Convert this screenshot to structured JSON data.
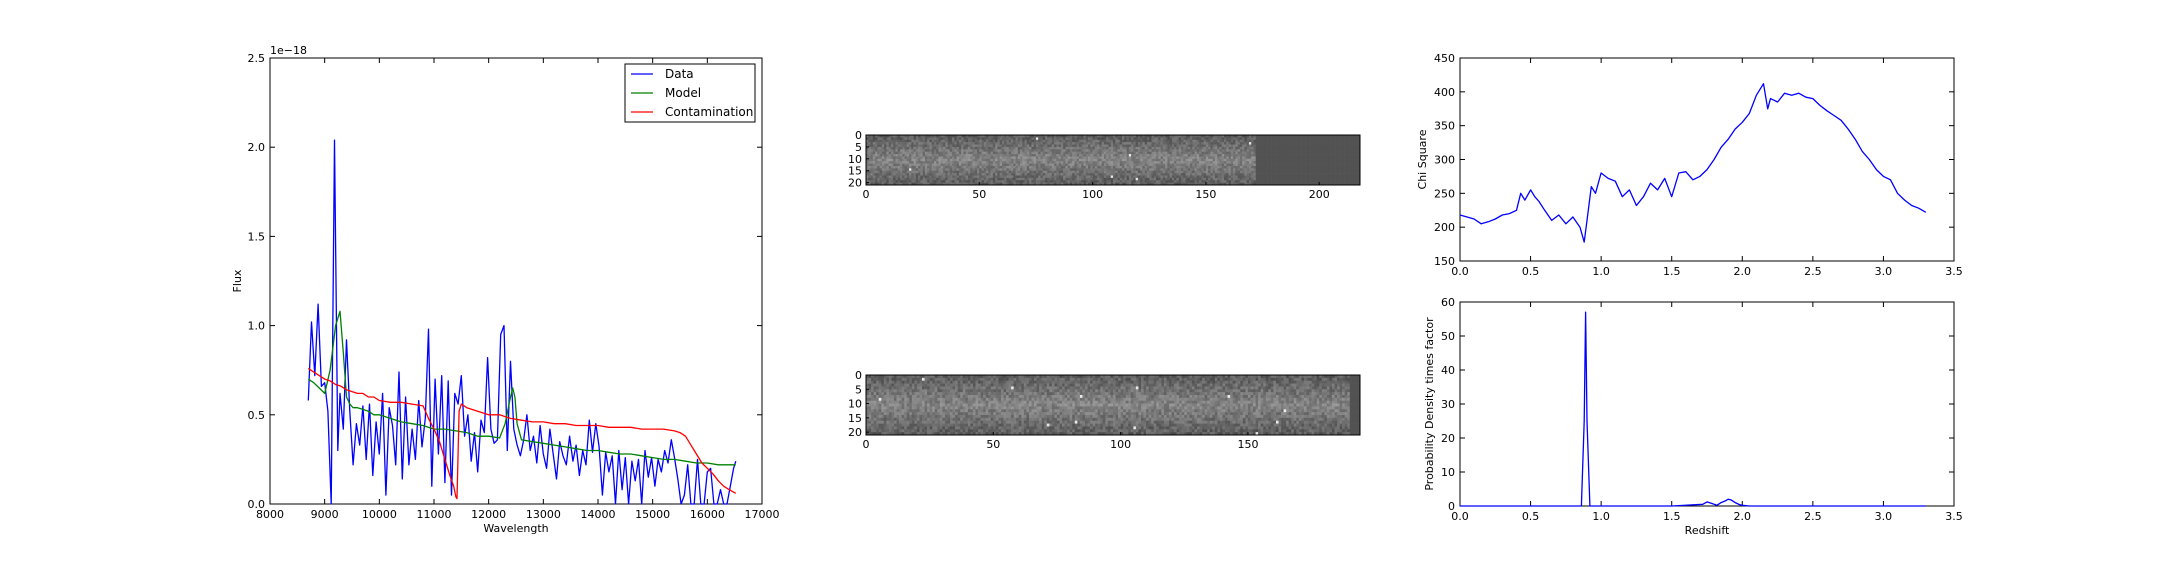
{
  "chart_data": [
    {
      "type": "line",
      "title": "",
      "xlabel": "Wavelength",
      "ylabel": "Flux",
      "yoffset_label": "1e−18",
      "xlim": [
        8000,
        17000
      ],
      "ylim": [
        0.0,
        2.5
      ],
      "xticks": [
        8000,
        9000,
        10000,
        11000,
        12000,
        13000,
        14000,
        15000,
        16000,
        17000
      ],
      "yticks": [
        0.0,
        0.5,
        1.0,
        1.5,
        2.0,
        2.5
      ],
      "ytick_labels": [
        "0.0",
        "0.5",
        "1.0",
        "1.5",
        "2.0",
        "2.5"
      ],
      "legend": {
        "position": "upper right"
      },
      "series": [
        {
          "name": "Data",
          "color": "#0000ff",
          "x": [
            8700,
            8760,
            8820,
            8880,
            8940,
            9000,
            9060,
            9120,
            9180,
            9240,
            9280,
            9340,
            9400,
            9460,
            9520,
            9580,
            9640,
            9700,
            9760,
            9820,
            9880,
            9940,
            10000,
            10060,
            10120,
            10180,
            10240,
            10300,
            10360,
            10420,
            10480,
            10540,
            10600,
            10660,
            10720,
            10780,
            10840,
            10900,
            10960,
            11020,
            11080,
            11140,
            11200,
            11260,
            11320,
            11380,
            11440,
            11500,
            11560,
            11620,
            11680,
            11740,
            11800,
            11860,
            11920,
            11980,
            12040,
            12100,
            12160,
            12220,
            12280,
            12340,
            12400,
            12460,
            12520,
            12580,
            12640,
            12700,
            12760,
            12820,
            12880,
            12940,
            13000,
            13060,
            13120,
            13180,
            13240,
            13300,
            13360,
            13420,
            13480,
            13540,
            13600,
            13660,
            13720,
            13780,
            13840,
            13900,
            13960,
            14020,
            14080,
            14140,
            14200,
            14260,
            14320,
            14380,
            14440,
            14500,
            14560,
            14620,
            14680,
            14740,
            14800,
            14860,
            14920,
            14980,
            15040,
            15100,
            15160,
            15220,
            15280,
            15340,
            15400,
            15460,
            15520,
            15580,
            15640,
            15700,
            15760,
            15820,
            15880,
            15940,
            16000,
            16060,
            16120,
            16180,
            16240,
            16300,
            16360,
            16420,
            16480,
            16520
          ],
          "y": [
            0.58,
            1.02,
            0.72,
            1.12,
            0.66,
            0.68,
            0.52,
            0.0,
            2.04,
            0.3,
            0.62,
            0.42,
            0.92,
            0.52,
            0.22,
            0.45,
            0.33,
            0.55,
            0.25,
            0.56,
            0.16,
            0.46,
            0.28,
            0.62,
            0.05,
            0.54,
            0.44,
            0.22,
            0.74,
            0.14,
            0.6,
            0.22,
            0.42,
            0.25,
            0.58,
            0.32,
            0.48,
            0.98,
            0.1,
            0.7,
            0.28,
            0.72,
            0.12,
            0.69,
            0.05,
            0.62,
            0.56,
            0.72,
            0.38,
            0.5,
            0.24,
            0.4,
            0.18,
            0.47,
            0.4,
            0.82,
            0.42,
            0.34,
            0.36,
            0.95,
            1.0,
            0.3,
            0.8,
            0.42,
            0.33,
            0.27,
            0.36,
            0.5,
            0.3,
            0.38,
            0.23,
            0.44,
            0.28,
            0.2,
            0.42,
            0.28,
            0.14,
            0.35,
            0.27,
            0.22,
            0.38,
            0.24,
            0.33,
            0.16,
            0.3,
            0.22,
            0.47,
            0.29,
            0.45,
            0.32,
            0.05,
            0.29,
            0.18,
            0.27,
            0.0,
            0.3,
            0.08,
            0.26,
            0.0,
            0.24,
            0.13,
            0.25,
            0.0,
            0.3,
            0.15,
            0.26,
            0.1,
            0.25,
            0.18,
            0.3,
            0.23,
            0.36,
            0.26,
            0.14,
            0.0,
            0.05,
            0.22,
            0.0,
            0.0,
            0.25,
            0.0,
            0.0,
            0.18,
            0.2,
            0.0,
            0.0,
            0.08,
            0.0,
            0.0,
            0.1,
            0.2,
            0.24
          ]
        },
        {
          "name": "Model",
          "color": "#008000",
          "x": [
            8700,
            8800,
            8900,
            9000,
            9100,
            9200,
            9280,
            9340,
            9400,
            9460,
            9520,
            9600,
            9700,
            9800,
            9900,
            10000,
            10200,
            10400,
            10600,
            10800,
            11000,
            11200,
            11400,
            11600,
            11800,
            12000,
            12200,
            12300,
            12400,
            12440,
            12480,
            12520,
            12600,
            12800,
            13000,
            13200,
            13400,
            13600,
            13800,
            14000,
            14200,
            14400,
            14600,
            14800,
            15000,
            15200,
            15400,
            15600,
            15800,
            16000,
            16200,
            16400,
            16520
          ],
          "y": [
            0.7,
            0.68,
            0.65,
            0.62,
            0.75,
            1.0,
            1.08,
            0.85,
            0.6,
            0.56,
            0.54,
            0.54,
            0.53,
            0.52,
            0.5,
            0.5,
            0.48,
            0.46,
            0.45,
            0.44,
            0.42,
            0.42,
            0.41,
            0.4,
            0.38,
            0.38,
            0.37,
            0.45,
            0.6,
            0.65,
            0.6,
            0.45,
            0.36,
            0.35,
            0.34,
            0.33,
            0.32,
            0.31,
            0.3,
            0.3,
            0.29,
            0.28,
            0.28,
            0.27,
            0.26,
            0.25,
            0.25,
            0.24,
            0.23,
            0.23,
            0.22,
            0.22,
            0.22
          ]
        },
        {
          "name": "Contamination",
          "color": "#ff0000",
          "x": [
            8700,
            8800,
            8900,
            9000,
            9100,
            9200,
            9300,
            9400,
            9500,
            9600,
            9700,
            9800,
            9900,
            10000,
            10200,
            10400,
            10600,
            10800,
            10900,
            11000,
            11100,
            11200,
            11300,
            11360,
            11400,
            11420,
            11460,
            11500,
            11600,
            11800,
            12000,
            12200,
            12400,
            12600,
            12800,
            13000,
            13200,
            13400,
            13600,
            13800,
            14000,
            14200,
            14400,
            14600,
            14800,
            15000,
            15200,
            15400,
            15500,
            15600,
            15700,
            15800,
            15900,
            16000,
            16100,
            16200,
            16300,
            16400,
            16520
          ],
          "y": [
            0.76,
            0.74,
            0.72,
            0.7,
            0.69,
            0.67,
            0.66,
            0.64,
            0.63,
            0.62,
            0.62,
            0.6,
            0.6,
            0.58,
            0.57,
            0.57,
            0.56,
            0.55,
            0.48,
            0.42,
            0.35,
            0.25,
            0.15,
            0.1,
            0.04,
            0.03,
            0.52,
            0.56,
            0.54,
            0.52,
            0.5,
            0.5,
            0.48,
            0.47,
            0.46,
            0.46,
            0.45,
            0.45,
            0.44,
            0.44,
            0.44,
            0.43,
            0.43,
            0.43,
            0.42,
            0.42,
            0.42,
            0.41,
            0.4,
            0.38,
            0.33,
            0.28,
            0.23,
            0.2,
            0.17,
            0.13,
            0.1,
            0.08,
            0.06
          ]
        }
      ]
    },
    {
      "type": "heatmap",
      "title": "",
      "xlim": [
        0,
        218
      ],
      "ylim": [
        21,
        0
      ],
      "xticks": [
        0,
        50,
        100,
        150,
        200
      ],
      "yticks": [
        0,
        5,
        10,
        15,
        20
      ],
      "colormap": "gray",
      "masked_from_x": 172
    },
    {
      "type": "heatmap",
      "title": "",
      "xlim": [
        0,
        194
      ],
      "ylim": [
        21,
        0
      ],
      "xticks": [
        0,
        50,
        100,
        150
      ],
      "yticks": [
        0,
        5,
        10,
        15,
        20
      ],
      "colormap": "gray",
      "masked_from_x": 190
    },
    {
      "type": "line",
      "title": "",
      "xlabel": "",
      "ylabel": "Chi Square",
      "xlim": [
        0.0,
        3.5
      ],
      "ylim": [
        150,
        450
      ],
      "xticks": [
        0.0,
        0.5,
        1.0,
        1.5,
        2.0,
        2.5,
        3.0,
        3.5
      ],
      "xtick_labels": [
        "0.0",
        "0.5",
        "1.0",
        "1.5",
        "2.0",
        "2.5",
        "3.0",
        "3.5"
      ],
      "yticks": [
        150,
        200,
        250,
        300,
        350,
        400,
        450
      ],
      "series": [
        {
          "color": "#0000ff",
          "x": [
            0.0,
            0.05,
            0.1,
            0.15,
            0.2,
            0.25,
            0.3,
            0.35,
            0.4,
            0.43,
            0.46,
            0.5,
            0.53,
            0.56,
            0.6,
            0.65,
            0.7,
            0.75,
            0.8,
            0.85,
            0.88,
            0.9,
            0.93,
            0.96,
            1.0,
            1.05,
            1.1,
            1.15,
            1.2,
            1.25,
            1.3,
            1.35,
            1.4,
            1.45,
            1.5,
            1.55,
            1.6,
            1.65,
            1.7,
            1.75,
            1.8,
            1.85,
            1.9,
            1.95,
            2.0,
            2.05,
            2.1,
            2.15,
            2.18,
            2.2,
            2.25,
            2.3,
            2.35,
            2.4,
            2.45,
            2.5,
            2.55,
            2.6,
            2.65,
            2.7,
            2.75,
            2.8,
            2.85,
            2.9,
            2.95,
            3.0,
            3.05,
            3.1,
            3.15,
            3.2,
            3.25,
            3.3
          ],
          "y": [
            218,
            215,
            212,
            205,
            208,
            212,
            218,
            220,
            225,
            250,
            240,
            255,
            245,
            238,
            225,
            210,
            218,
            205,
            215,
            200,
            178,
            210,
            260,
            250,
            280,
            272,
            268,
            245,
            255,
            232,
            245,
            265,
            255,
            272,
            245,
            280,
            282,
            270,
            275,
            285,
            300,
            318,
            330,
            345,
            355,
            368,
            395,
            412,
            375,
            390,
            385,
            398,
            395,
            398,
            392,
            390,
            380,
            372,
            365,
            358,
            345,
            330,
            312,
            300,
            285,
            275,
            270,
            250,
            240,
            232,
            228,
            222
          ]
        }
      ]
    },
    {
      "type": "line",
      "title": "",
      "xlabel": "Redshift",
      "ylabel": "Probability Density times factor",
      "xlim": [
        0.0,
        3.5
      ],
      "ylim": [
        0,
        60
      ],
      "xticks": [
        0.0,
        0.5,
        1.0,
        1.5,
        2.0,
        2.5,
        3.0,
        3.5
      ],
      "xtick_labels": [
        "0.0",
        "0.5",
        "1.0",
        "1.5",
        "2.0",
        "2.5",
        "3.0",
        "3.5"
      ],
      "yticks": [
        0,
        10,
        20,
        30,
        40,
        50,
        60
      ],
      "series": [
        {
          "color": "#0000ff",
          "x": [
            0.0,
            0.5,
            0.86,
            0.88,
            0.89,
            0.9,
            0.92,
            1.5,
            1.72,
            1.75,
            1.78,
            1.82,
            1.85,
            1.88,
            1.9,
            1.92,
            1.95,
            1.98,
            2.0,
            2.05,
            2.5,
            3.0,
            3.3
          ],
          "y": [
            0,
            0,
            0,
            25,
            57,
            25,
            0,
            0,
            0.5,
            1.2,
            0.8,
            0.2,
            1.0,
            1.5,
            2.0,
            1.8,
            1.0,
            0.4,
            0.2,
            0,
            0,
            0,
            0
          ]
        }
      ]
    }
  ]
}
